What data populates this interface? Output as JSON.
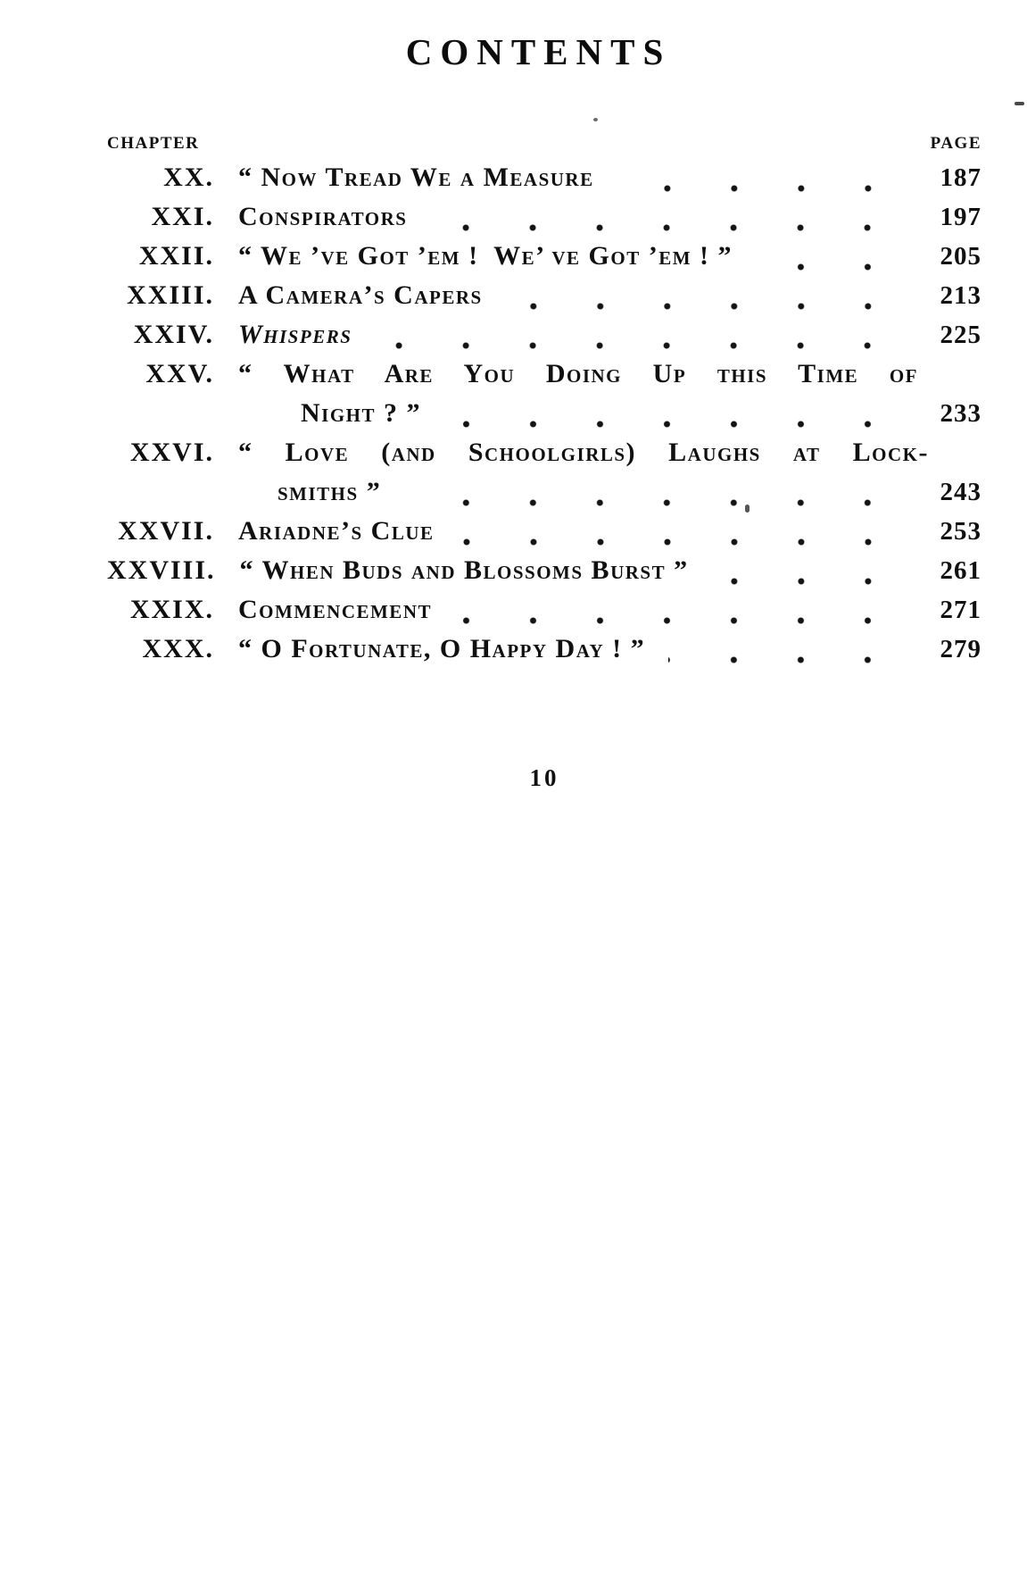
{
  "page_title": "CONTENTS",
  "header": {
    "chapter_label": "CHAPTER",
    "page_label": "PAGE"
  },
  "entries": [
    {
      "numeral": "XX.",
      "line1": "“ Now Tread We a Measure",
      "page": "187"
    },
    {
      "numeral": "XXI.",
      "line1": "Conspirators",
      "page": "197"
    },
    {
      "numeral": "XXII.",
      "line1": "“ We ’ve Got ’em ! We’ ve Got ’em ! ”",
      "page": "205"
    },
    {
      "numeral": "XXIII.",
      "line1": "A Camera’s Capers",
      "page": "213"
    },
    {
      "numeral": "XXIV.",
      "line1": "Whispers",
      "page": "225"
    },
    {
      "numeral": "XXV.",
      "line1": "“ What Are You Doing Up this Time of",
      "line2": "Night ? ”",
      "page": "233"
    },
    {
      "numeral": "XXVI.",
      "line1": "“ Love (and Schoolgirls) Laughs at Lock-",
      "line2": "smiths ”",
      "page": "243"
    },
    {
      "numeral": "XXVII.",
      "line1": "Ariadne’s Clue",
      "page": "253"
    },
    {
      "numeral": "XXVIII.",
      "line1": "“ When Buds and Blossoms Burst ”",
      "page": "261"
    },
    {
      "numeral": "XXIX.",
      "line1": "Commencement",
      "page": "271"
    },
    {
      "numeral": "XXX.",
      "line1": "“ O Fortunate, O Happy Day ! ”",
      "page": "279"
    }
  ],
  "folio": "10"
}
